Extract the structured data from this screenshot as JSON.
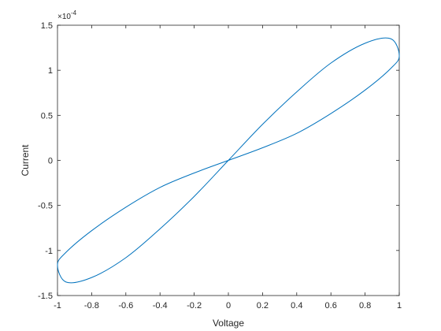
{
  "chart_data": {
    "type": "line",
    "title": "",
    "xlabel": "Voltage",
    "ylabel": "Current",
    "xlim": [
      -1,
      1
    ],
    "ylim": [
      -1.5,
      1.5
    ],
    "y_scale_exponent_label": "×10^-4",
    "y_exponent_base": "×10",
    "y_exponent_power": "-4",
    "x_ticks": [
      "-1",
      "-0.8",
      "-0.6",
      "-0.4",
      "-0.2",
      "0",
      "0.2",
      "0.4",
      "0.6",
      "0.8",
      "1"
    ],
    "y_ticks": [
      "-1.5",
      "-1",
      "-0.5",
      "0",
      "0.5",
      "1",
      "1.5"
    ],
    "grid": false,
    "box": true,
    "series": [
      {
        "color": "#0072BD",
        "points": [
          [
            0.0,
            0.0
          ],
          [
            0.2,
            0.4
          ],
          [
            0.4,
            0.76
          ],
          [
            0.6,
            1.08
          ],
          [
            0.8,
            1.3
          ],
          [
            0.95,
            1.35
          ],
          [
            1.0,
            1.16
          ],
          [
            0.95,
            1.02
          ],
          [
            0.8,
            0.78
          ],
          [
            0.6,
            0.52
          ],
          [
            0.4,
            0.3
          ],
          [
            0.2,
            0.14
          ],
          [
            0.0,
            0.0
          ],
          [
            -0.2,
            -0.14
          ],
          [
            -0.4,
            -0.3
          ],
          [
            -0.6,
            -0.52
          ],
          [
            -0.8,
            -0.78
          ],
          [
            -0.95,
            -1.02
          ],
          [
            -1.0,
            -1.16
          ],
          [
            -0.95,
            -1.35
          ],
          [
            -0.8,
            -1.3
          ],
          [
            -0.6,
            -1.08
          ],
          [
            -0.4,
            -0.76
          ],
          [
            -0.2,
            -0.4
          ],
          [
            0.0,
            0.0
          ]
        ]
      }
    ],
    "colors": {
      "axis": "#262626",
      "line": "#0072BD"
    }
  }
}
